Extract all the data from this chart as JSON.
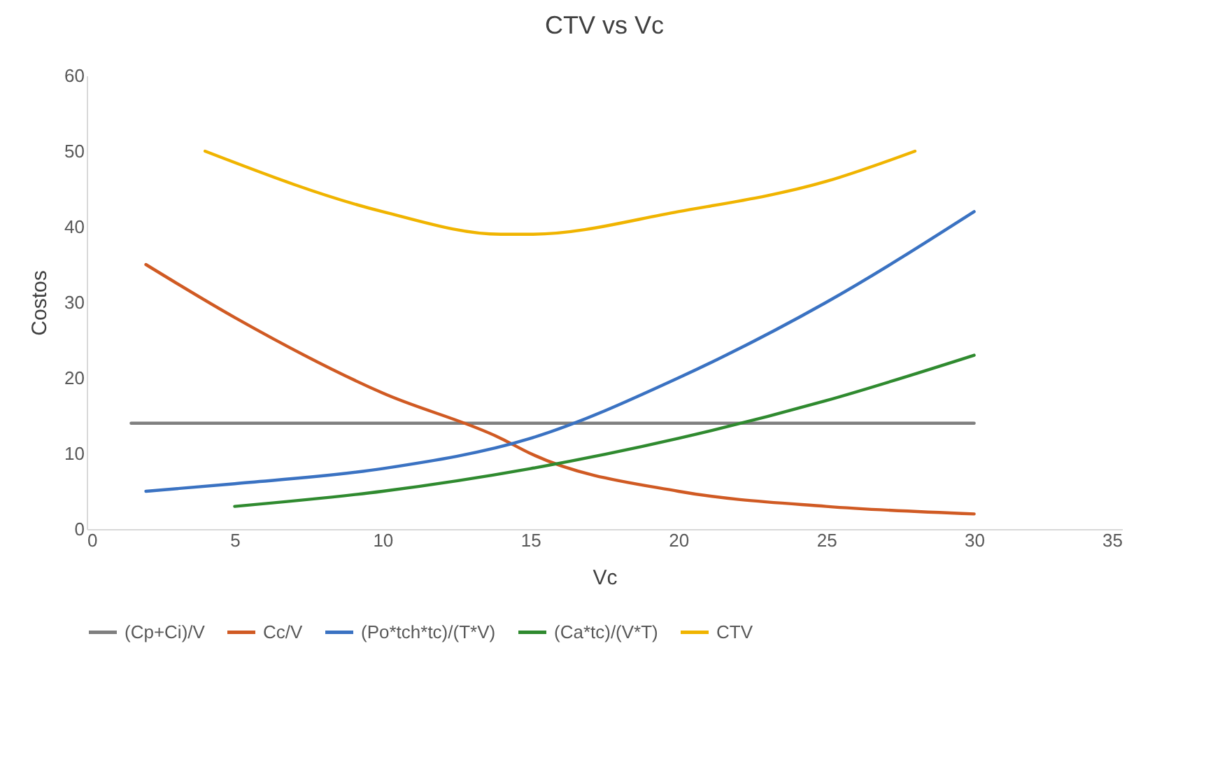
{
  "chart_data": {
    "type": "line",
    "title": "CTV vs Vc",
    "xlabel": "Vc",
    "ylabel": "Costos",
    "xlim": [
      0,
      35
    ],
    "xticks": [
      0,
      5,
      10,
      15,
      20,
      25,
      30,
      35
    ],
    "ylim": [
      0,
      60
    ],
    "yticks": [
      0,
      10,
      20,
      30,
      40,
      50,
      60
    ],
    "grid": false,
    "legend": "bottom",
    "marker": "none",
    "line_style": "solid",
    "series": [
      {
        "name": "(Cp+Ci)/V",
        "color": "#7f7f7f",
        "x": [
          1.5,
          30
        ],
        "values": [
          14,
          14
        ]
      },
      {
        "name": "Cc/V",
        "color": "#d05a23",
        "x": [
          2,
          5,
          10,
          14,
          15,
          20,
          25,
          30
        ],
        "values": [
          35,
          28,
          18,
          12,
          10,
          5,
          3,
          2
        ]
      },
      {
        "name": "(Po*tch*tc)/(T*V)",
        "color": "#3a72c2",
        "x": [
          2,
          5,
          10,
          15,
          20,
          25,
          30
        ],
        "values": [
          5,
          6,
          8,
          12,
          20,
          30,
          42
        ]
      },
      {
        "name": "(Ca*tc)/(V*T)",
        "color": "#2f8a2f",
        "x": [
          5,
          10,
          15,
          20,
          25,
          30
        ],
        "values": [
          3,
          5,
          8,
          12,
          17,
          23
        ]
      },
      {
        "name": "CTV",
        "color": "#f0b400",
        "x": [
          4,
          10,
          14,
          15,
          20,
          25,
          28
        ],
        "values": [
          50,
          42,
          39,
          39,
          42,
          46,
          50
        ]
      }
    ]
  }
}
